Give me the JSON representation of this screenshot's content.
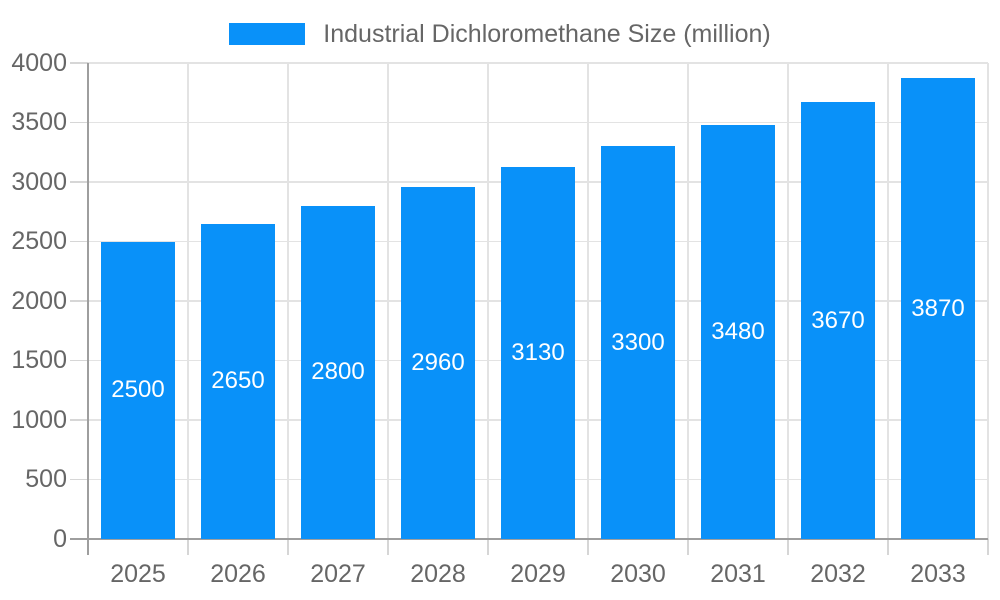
{
  "legend": {
    "label": "Industrial Dichloromethane Size (million)"
  },
  "chart_data": {
    "type": "bar",
    "title": "Industrial Dichloromethane Size (million)",
    "categories": [
      "2025",
      "2026",
      "2027",
      "2028",
      "2029",
      "2030",
      "2031",
      "2032",
      "2033"
    ],
    "values": [
      2500,
      2650,
      2800,
      2960,
      3130,
      3300,
      3480,
      3670,
      3870
    ],
    "value_labels": [
      "2500",
      "2650",
      "2800",
      "2960",
      "3130",
      "3300",
      "3480",
      "3670",
      "3870"
    ],
    "xlabel": "",
    "ylabel": "",
    "ylim": [
      0,
      4000
    ],
    "ytick_step": 500,
    "yticks": [
      0,
      500,
      1000,
      1500,
      2000,
      2500,
      3000,
      3500,
      4000
    ],
    "grid": true,
    "legend_position": "top"
  },
  "colors": {
    "background": "#ffffff",
    "bar": "#0991f9",
    "value_label": "#ffffff",
    "grid": "#e3e3e3",
    "axis": "#9e9e9e",
    "tick": "#d6d6d6",
    "text": "#666666"
  }
}
